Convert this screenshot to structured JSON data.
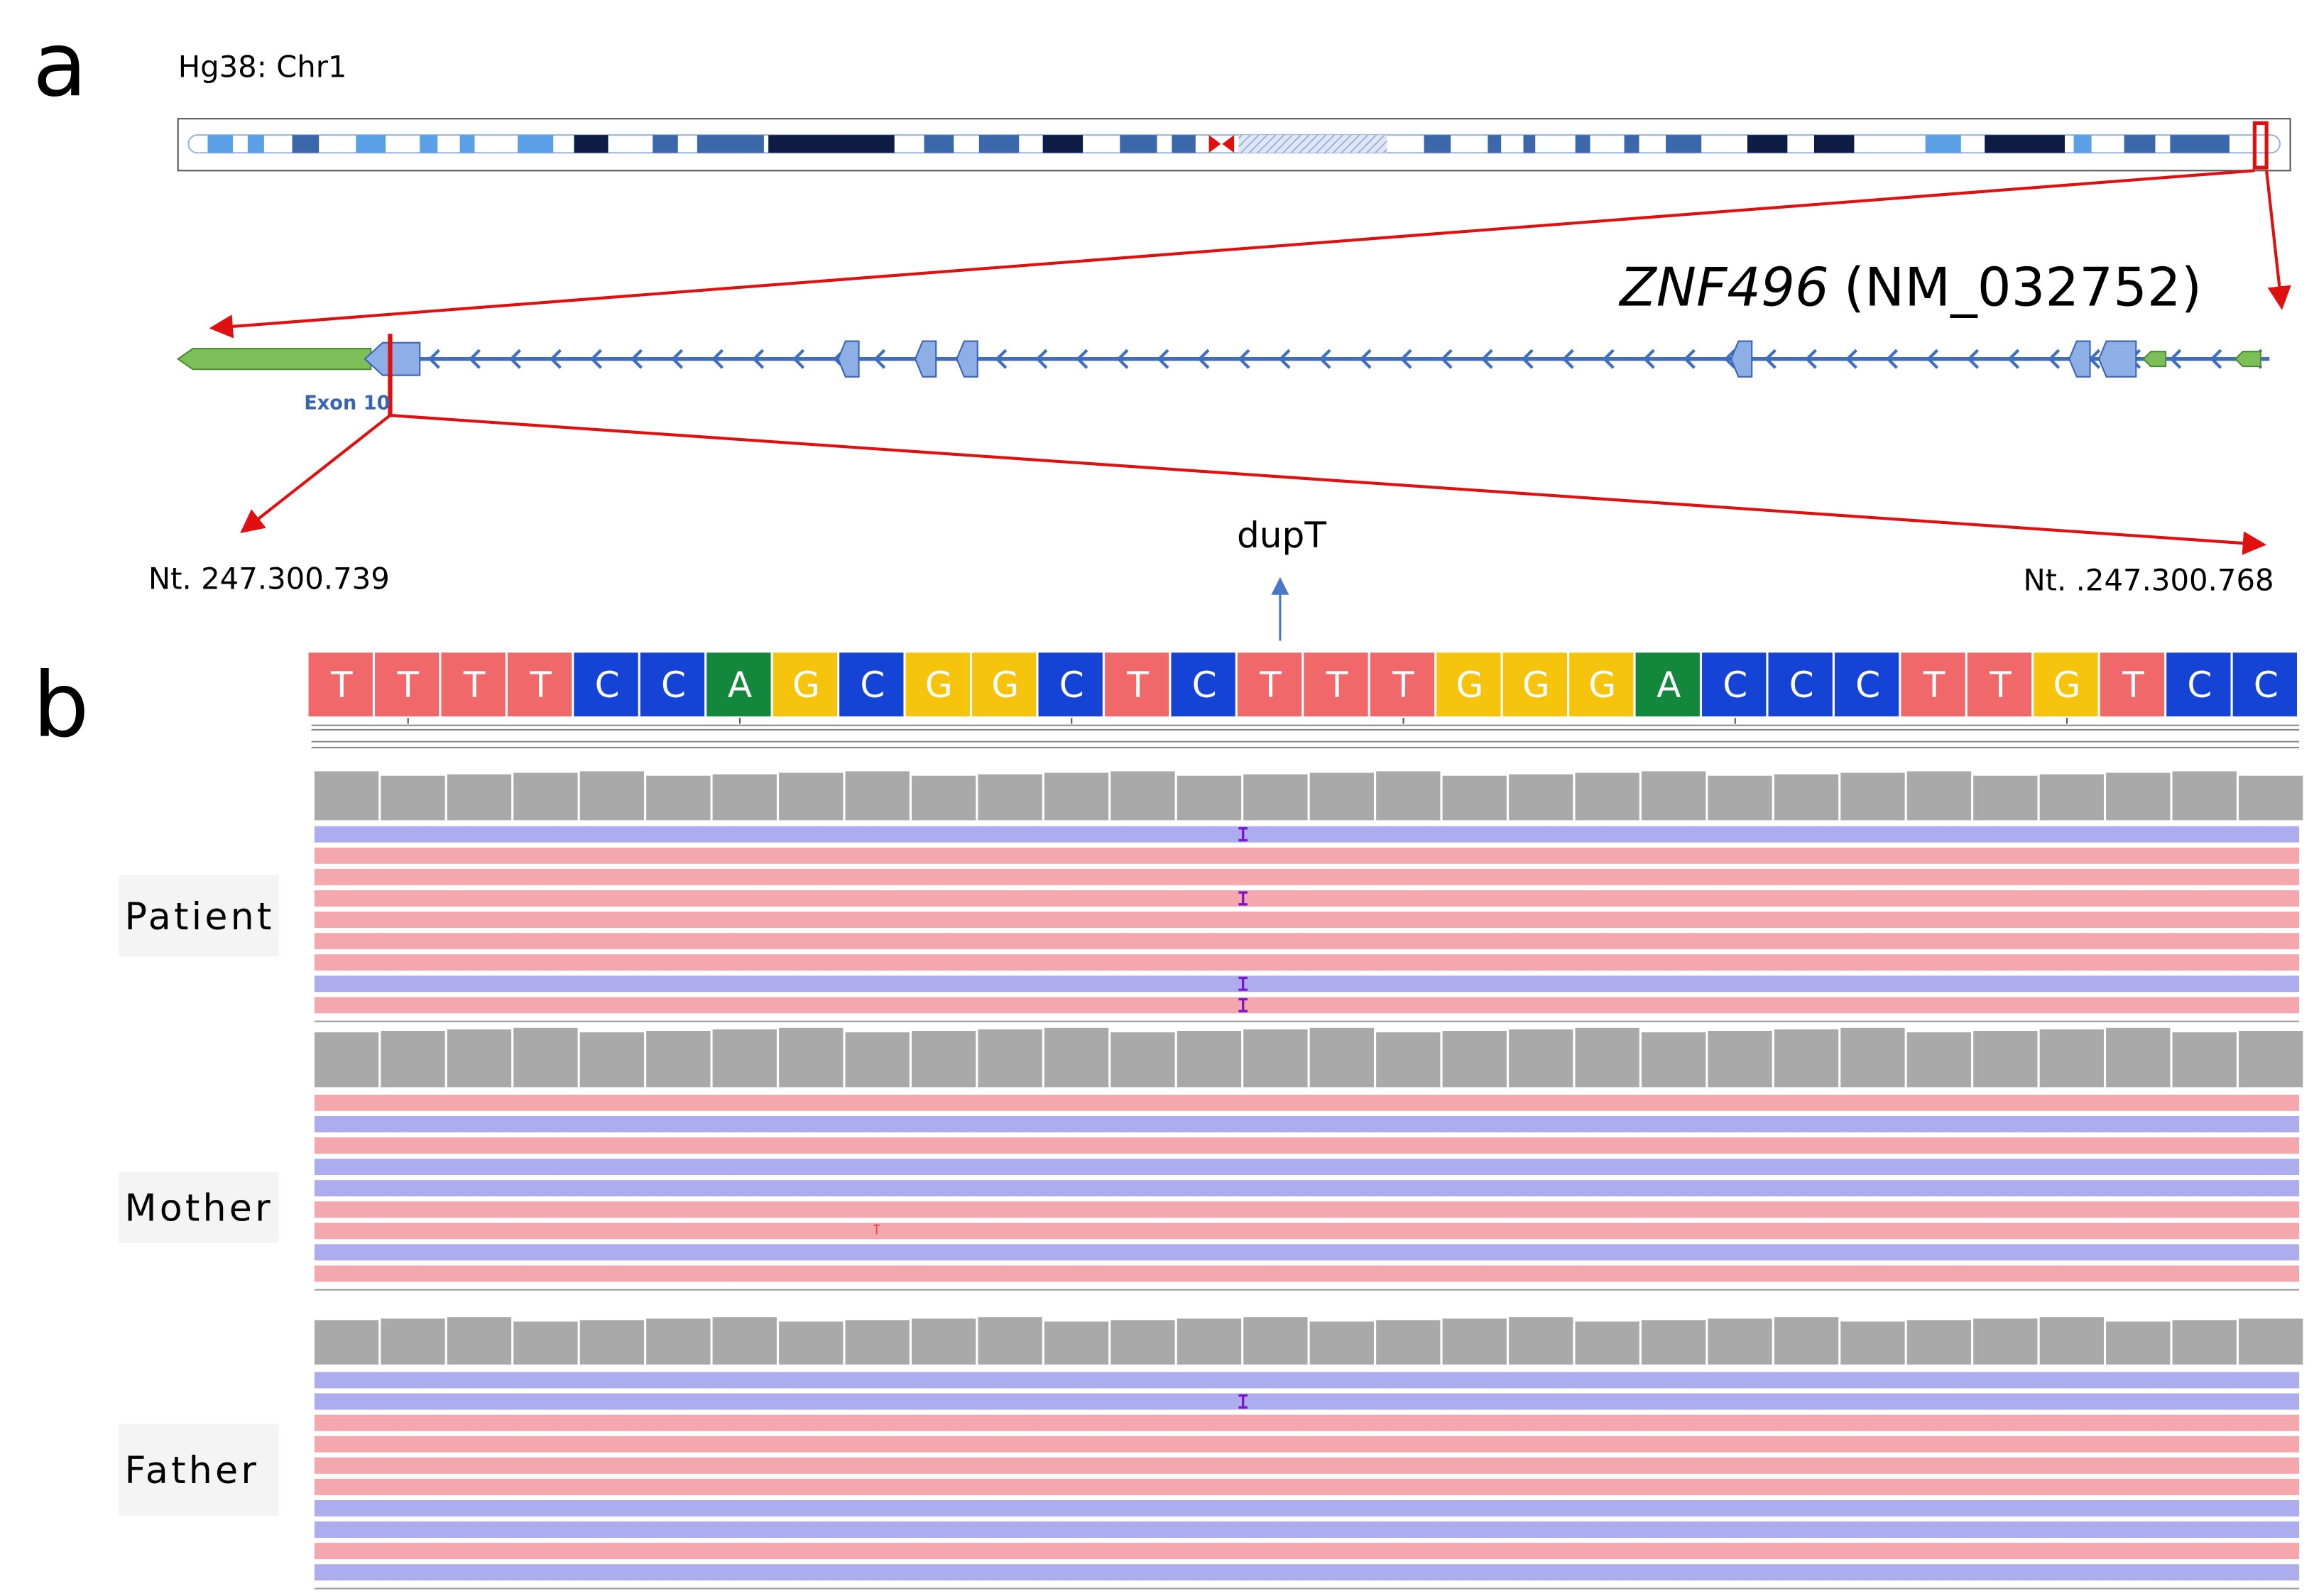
{
  "panel_a": {
    "label": "a",
    "genome": "Hg38: Chr1",
    "gene": {
      "symbol": "ZNF496",
      "transcript": "(NM_032752)"
    },
    "exon": "Exon 10",
    "start": "Nt. 247.300.739",
    "end": "Nt. .247.300.768"
  },
  "panel_b": {
    "label": "b",
    "variant": "dupT",
    "sequence": [
      "T",
      "T",
      "T",
      "T",
      "C",
      "C",
      "A",
      "G",
      "C",
      "G",
      "G",
      "C",
      "T",
      "C",
      "T",
      "T",
      "T",
      "G",
      "G",
      "G",
      "A",
      "C",
      "C",
      "C",
      "T",
      "T",
      "G",
      "T",
      "C",
      "C"
    ],
    "base_colors": {
      "T": "#f0686a",
      "C": "#1543d6",
      "A": "#13873c",
      "G": "#f6c40c"
    },
    "samples": [
      {
        "name": "Patient"
      },
      {
        "name": "Mother"
      },
      {
        "name": "Father"
      }
    ]
  }
}
